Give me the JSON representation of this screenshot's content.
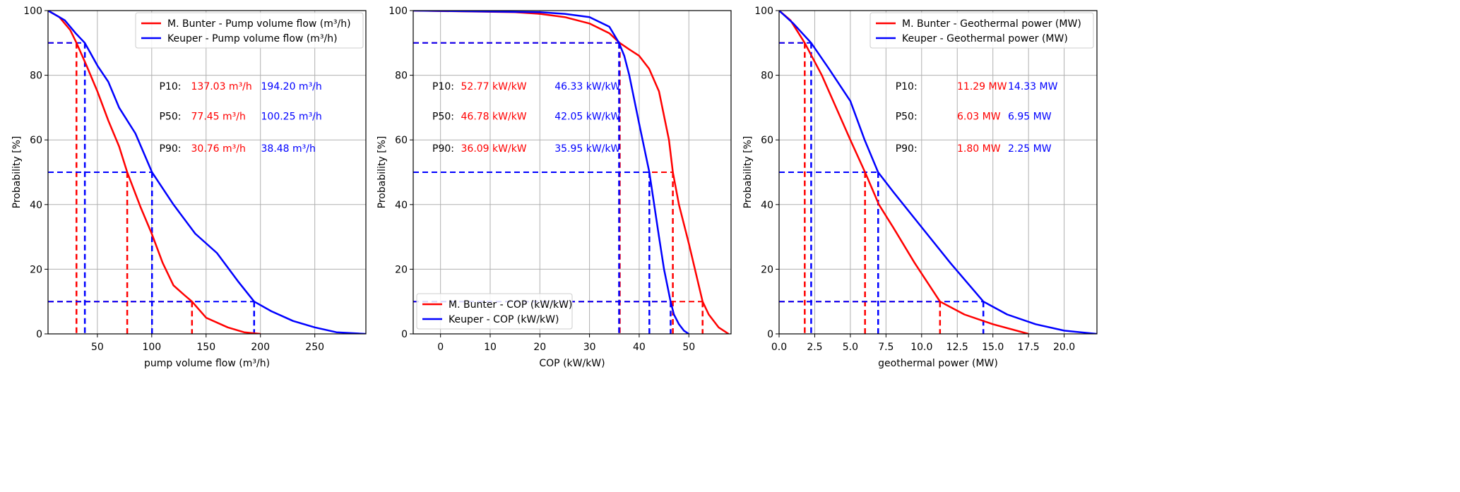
{
  "chart_data": [
    {
      "type": "line",
      "xlabel": "pump volume flow (m³/h)",
      "ylabel": "Probability [%]",
      "xlim": [
        4.6,
        297
      ],
      "ylim": [
        0,
        100
      ],
      "xticks": [
        "50",
        "100",
        "150",
        "200",
        "250"
      ],
      "xtick_values": [
        50,
        100,
        150,
        200,
        250
      ],
      "yticks": [
        "0",
        "20",
        "40",
        "60",
        "80",
        "100"
      ],
      "ytick_values": [
        0,
        20,
        40,
        60,
        80,
        100
      ],
      "grid": true,
      "legend_position": "upper-right",
      "series": [
        {
          "name": "M. Bunter - Pump volume flow (m³/h)",
          "color": "#ff0000",
          "x": [
            4.6,
            15,
            25,
            30.76,
            40,
            50,
            60,
            70,
            77.45,
            90,
            100,
            110,
            120,
            130,
            137.03,
            150,
            170,
            185,
            200
          ],
          "y": [
            100,
            98,
            94,
            90,
            83,
            75,
            66,
            58,
            50,
            39,
            31,
            22,
            15,
            12,
            10,
            5,
            2,
            0.5,
            0
          ],
          "percentiles": {
            "P10": 137.03,
            "P50": 77.45,
            "P90": 30.76
          }
        },
        {
          "name": "Keuper - Pump volume flow (m³/h)",
          "color": "#0000ff",
          "x": [
            4.6,
            20,
            30,
            38.48,
            50,
            60,
            70,
            85,
            100.25,
            120,
            140,
            160,
            180,
            194.2,
            210,
            230,
            250,
            270,
            297
          ],
          "y": [
            100,
            97,
            93,
            90,
            83,
            78,
            70,
            62,
            50,
            40,
            31,
            25,
            16,
            10,
            7,
            4,
            2,
            0.5,
            0
          ],
          "percentiles": {
            "P10": 194.2,
            "P50": 100.25,
            "P90": 38.48
          }
        }
      ],
      "annotations": {
        "labels": [
          "P10:",
          "P50:",
          "P90:"
        ],
        "red": [
          "137.03 m³/h",
          "77.45 m³/h",
          "30.76 m³/h"
        ],
        "blue": [
          "194.20 m³/h",
          "100.25 m³/h",
          "38.48 m³/h"
        ]
      }
    },
    {
      "type": "line",
      "xlabel": "COP (kW/kW)",
      "ylabel": "Probability [%]",
      "xlim": [
        -5.5,
        58.5
      ],
      "ylim": [
        0,
        100
      ],
      "xticks": [
        "0",
        "10",
        "20",
        "30",
        "40",
        "50"
      ],
      "xtick_values": [
        0,
        10,
        20,
        30,
        40,
        50
      ],
      "yticks": [
        "0",
        "20",
        "40",
        "60",
        "80",
        "100"
      ],
      "ytick_values": [
        0,
        20,
        40,
        60,
        80,
        100
      ],
      "grid": true,
      "legend_position": "lower-left",
      "series": [
        {
          "name": "M. Bunter - COP (kW/kW)",
          "color": "#ff0000",
          "x": [
            -5.5,
            15,
            20,
            25,
            30,
            34,
            36.09,
            38,
            40,
            42,
            44,
            46,
            46.78,
            48,
            50,
            52.77,
            54,
            56,
            58
          ],
          "y": [
            100,
            99.5,
            99,
            98,
            96,
            93,
            90,
            88,
            86,
            82,
            75,
            60,
            50,
            40,
            28,
            10,
            6,
            2,
            0
          ],
          "percentiles": {
            "P10": 52.77,
            "P50": 46.78,
            "P90": 36.09
          }
        },
        {
          "name": "Keuper - COP (kW/kW)",
          "color": "#0000ff",
          "x": [
            -5.5,
            20,
            25,
            30,
            34,
            35.95,
            37,
            38,
            40,
            42.05,
            44,
            45,
            46.33,
            47,
            48,
            49,
            50
          ],
          "y": [
            100,
            99.5,
            99,
            98,
            95,
            90,
            86,
            80,
            65,
            50,
            30,
            20,
            10,
            6,
            3,
            1,
            0
          ],
          "percentiles": {
            "P10": 46.33,
            "P50": 42.05,
            "P90": 35.95
          }
        }
      ],
      "annotations": {
        "labels": [
          "P10:",
          "P50:",
          "P90:"
        ],
        "red": [
          "52.77 kW/kW",
          "46.78 kW/kW",
          "36.09 kW/kW"
        ],
        "blue": [
          "46.33 kW/kW",
          "42.05 kW/kW",
          "35.95 kW/kW"
        ]
      }
    },
    {
      "type": "line",
      "xlabel": "geothermal power (MW)",
      "ylabel": "Probability [%]",
      "xlim": [
        0,
        22.3
      ],
      "ylim": [
        0,
        100
      ],
      "xticks": [
        "0.0",
        "2.5",
        "5.0",
        "7.5",
        "10.0",
        "12.5",
        "15.0",
        "17.5",
        "20.0"
      ],
      "xtick_values": [
        0,
        2.5,
        5,
        7.5,
        10,
        12.5,
        15,
        17.5,
        20
      ],
      "yticks": [
        "0",
        "20",
        "40",
        "60",
        "80",
        "100"
      ],
      "ytick_values": [
        0,
        20,
        40,
        60,
        80,
        100
      ],
      "grid": true,
      "legend_position": "upper-right",
      "series": [
        {
          "name": "M. Bunter - Geothermal power (MW)",
          "color": "#ff0000",
          "x": [
            0,
            0.8,
            1.8,
            3,
            4,
            5,
            6.03,
            7,
            8,
            9.5,
            11.29,
            13,
            15,
            17.5
          ],
          "y": [
            100,
            97,
            90,
            80,
            70,
            60,
            50,
            40,
            33,
            22,
            10,
            6,
            3,
            0
          ],
          "percentiles": {
            "P10": 11.29,
            "P50": 6.03,
            "P90": 1.8
          }
        },
        {
          "name": "Keuper - Geothermal power (MW)",
          "color": "#0000ff",
          "x": [
            0,
            1,
            2.25,
            3.5,
            5,
            6,
            6.95,
            8,
            10,
            12,
            14.33,
            16,
            18,
            20,
            22.3
          ],
          "y": [
            100,
            96,
            90,
            82,
            72,
            60,
            50,
            44,
            33,
            22,
            10,
            6,
            3,
            1,
            0
          ],
          "percentiles": {
            "P10": 14.33,
            "P50": 6.95,
            "P90": 2.25
          }
        }
      ],
      "annotations": {
        "labels": [
          "P10:",
          "P50:",
          "P90:"
        ],
        "red": [
          "11.29 MW",
          "6.03 MW",
          "1.80 MW"
        ],
        "blue": [
          "14.33 MW",
          "6.95 MW",
          "2.25 MW"
        ]
      }
    }
  ]
}
